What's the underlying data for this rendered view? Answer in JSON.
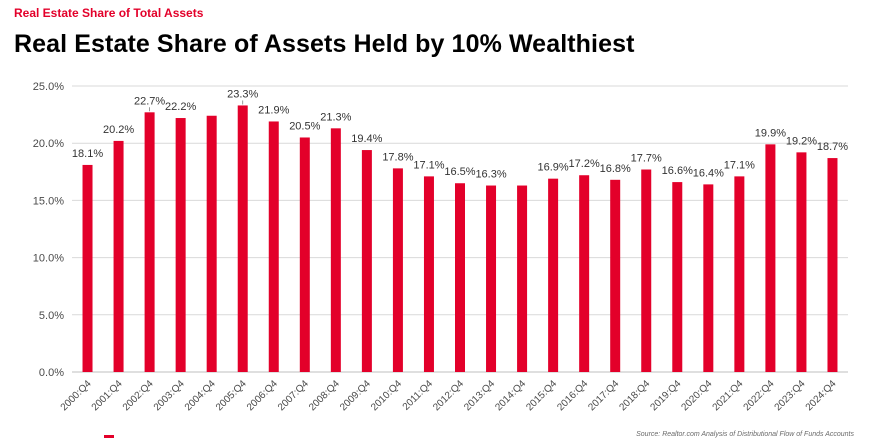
{
  "header": {
    "kicker": "Real Estate Share of Total Assets",
    "title": "Real Estate Share of Assets Held by 10% Wealthiest"
  },
  "footer": {
    "source": "Source: Realtor.com Analysis of Distributional Flow of Funds Accounts"
  },
  "colors": {
    "bar": "#e3002a",
    "kicker": "#e3002a",
    "grid": "#d9d9d9",
    "axis": "#bfbfbf"
  },
  "chart_data": {
    "type": "bar",
    "title": "Real Estate Share of Assets Held by 10% Wealthiest",
    "xlabel": "",
    "ylabel": "",
    "ylim": [
      0,
      25
    ],
    "yticks": [
      "0.0%",
      "5.0%",
      "10.0%",
      "15.0%",
      "20.0%",
      "25.0%"
    ],
    "grid": true,
    "categories": [
      "2000:Q4",
      "2001:Q4",
      "2002:Q4",
      "2003:Q4",
      "2004:Q4",
      "2005:Q4",
      "2006:Q4",
      "2007:Q4",
      "2008:Q4",
      "2009:Q4",
      "2010:Q4",
      "2011:Q4",
      "2012:Q4",
      "2013:Q4",
      "2014:Q4",
      "2015:Q4",
      "2016:Q4",
      "2017:Q4",
      "2018:Q4",
      "2019:Q4",
      "2020:Q4",
      "2021:Q4",
      "2022:Q4",
      "2023:Q4",
      "2024:Q4"
    ],
    "values": [
      18.1,
      20.2,
      22.7,
      22.2,
      22.4,
      23.3,
      21.9,
      20.5,
      21.3,
      19.4,
      17.8,
      17.1,
      16.5,
      16.3,
      16.3,
      16.9,
      17.2,
      16.8,
      17.7,
      16.6,
      16.4,
      17.1,
      19.9,
      19.2,
      18.7
    ],
    "data_labels": [
      "18.1%",
      "20.2%",
      "22.7%",
      "22.2%",
      null,
      "23.3%",
      "21.9%",
      "20.5%",
      "21.3%",
      "19.4%",
      "17.8%",
      "17.1%",
      "16.5%",
      "16.3%",
      null,
      "16.9%",
      "17.2%",
      "16.8%",
      "17.7%",
      "16.6%",
      "16.4%",
      "17.1%",
      "19.9%",
      "19.2%",
      "18.7%"
    ]
  }
}
